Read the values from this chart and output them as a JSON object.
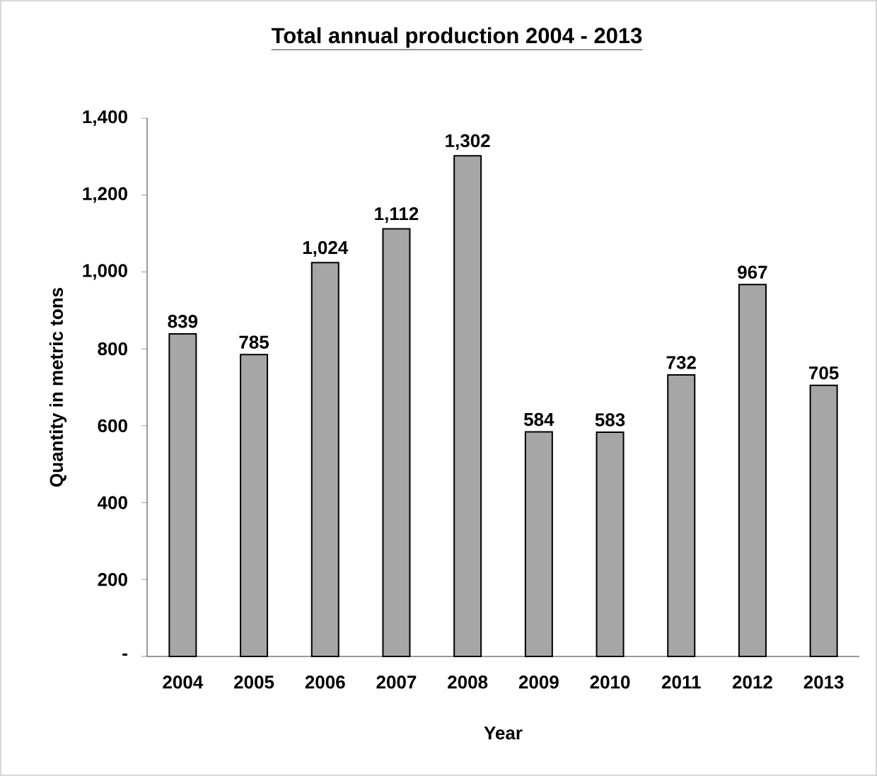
{
  "chart_data": {
    "type": "bar",
    "title": "Total annual production 2004 - 2013",
    "xlabel": "Year",
    "ylabel": "Quantity in metric tons",
    "categories": [
      "2004",
      "2005",
      "2006",
      "2007",
      "2008",
      "2009",
      "2010",
      "2011",
      "2012",
      "2013"
    ],
    "values": [
      839,
      785,
      1024,
      1112,
      1302,
      584,
      583,
      732,
      967,
      705
    ],
    "value_labels": [
      "839",
      "785",
      "1,024",
      "1,112",
      "1,302",
      "584",
      "583",
      "732",
      "967",
      "705"
    ],
    "color": "#a6a6a6",
    "ylim": [
      0,
      1400
    ],
    "yticks": [
      {
        "value": 0,
        "label": "-"
      },
      200,
      400,
      600,
      800,
      {
        "value": 1000,
        "label": "1,000"
      },
      {
        "value": 1200,
        "label": "1,200"
      },
      {
        "value": 1400,
        "label": "1,400"
      }
    ]
  }
}
